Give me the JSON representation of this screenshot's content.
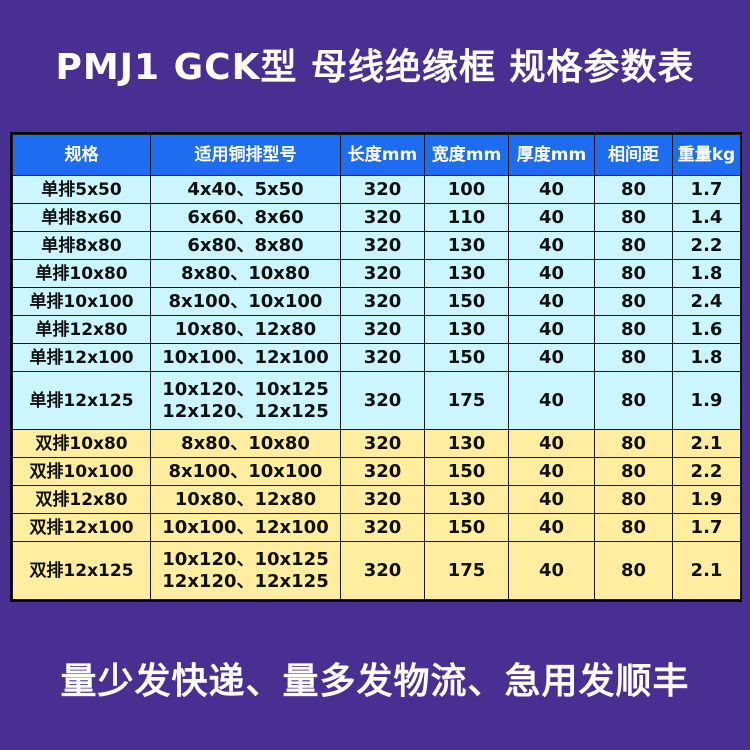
{
  "title": "PMJ1 GCK型 母线绝缘框  规格参数表",
  "table": {
    "headers": [
      "规格",
      "适用铜排型号",
      "长度mm",
      "宽度mm",
      "厚度mm",
      "相间距",
      "重量kg"
    ],
    "rows": [
      {
        "group": "single",
        "spec": "单排5x50",
        "fit": [
          "4x40、5x50"
        ],
        "length": "320",
        "width": "100",
        "thickness": "40",
        "spacing": "80",
        "weight": "1.7"
      },
      {
        "group": "single",
        "spec": "单排8x60",
        "fit": [
          "6x60、8x60"
        ],
        "length": "320",
        "width": "110",
        "thickness": "40",
        "spacing": "80",
        "weight": "1.4"
      },
      {
        "group": "single",
        "spec": "单排8x80",
        "fit": [
          "6x80、8x80"
        ],
        "length": "320",
        "width": "130",
        "thickness": "40",
        "spacing": "80",
        "weight": "2.2"
      },
      {
        "group": "single",
        "spec": "单排10x80",
        "fit": [
          "8x80、10x80"
        ],
        "length": "320",
        "width": "130",
        "thickness": "40",
        "spacing": "80",
        "weight": "1.8"
      },
      {
        "group": "single",
        "spec": "单排10x100",
        "fit": [
          "8x100、10x100"
        ],
        "length": "320",
        "width": "150",
        "thickness": "40",
        "spacing": "80",
        "weight": "2.4"
      },
      {
        "group": "single",
        "spec": "单排12x80",
        "fit": [
          "10x80、12x80"
        ],
        "length": "320",
        "width": "130",
        "thickness": "40",
        "spacing": "80",
        "weight": "1.6"
      },
      {
        "group": "single",
        "spec": "单排12x100",
        "fit": [
          "10x100、12x100"
        ],
        "length": "320",
        "width": "150",
        "thickness": "40",
        "spacing": "80",
        "weight": "1.8"
      },
      {
        "group": "single",
        "spec": "单排12x125",
        "fit": [
          "10x120、10x125",
          "12x120、12x125"
        ],
        "length": "320",
        "width": "175",
        "thickness": "40",
        "spacing": "80",
        "weight": "1.9"
      },
      {
        "group": "double",
        "spec": "双排10x80",
        "fit": [
          "8x80、10x80"
        ],
        "length": "320",
        "width": "130",
        "thickness": "40",
        "spacing": "80",
        "weight": "2.1"
      },
      {
        "group": "double",
        "spec": "双排10x100",
        "fit": [
          "8x100、10x100"
        ],
        "length": "320",
        "width": "150",
        "thickness": "40",
        "spacing": "80",
        "weight": "2.2"
      },
      {
        "group": "double",
        "spec": "双排12x80",
        "fit": [
          "10x80、12x80"
        ],
        "length": "320",
        "width": "130",
        "thickness": "40",
        "spacing": "80",
        "weight": "1.9"
      },
      {
        "group": "double",
        "spec": "双排12x100",
        "fit": [
          "10x100、12x100"
        ],
        "length": "320",
        "width": "150",
        "thickness": "40",
        "spacing": "80",
        "weight": "1.7"
      },
      {
        "group": "double",
        "spec": "双排12x125",
        "fit": [
          "10x120、10x125",
          "12x120、12x125"
        ],
        "length": "320",
        "width": "175",
        "thickness": "40",
        "spacing": "80",
        "weight": "2.1"
      }
    ]
  },
  "footer": "量少发快递、量多发物流、急用发顺丰",
  "colors": {
    "background": "#4a2f93",
    "header": "#1e6cf0",
    "single_row": "#ccf6ff",
    "double_row": "#ffeea0"
  }
}
